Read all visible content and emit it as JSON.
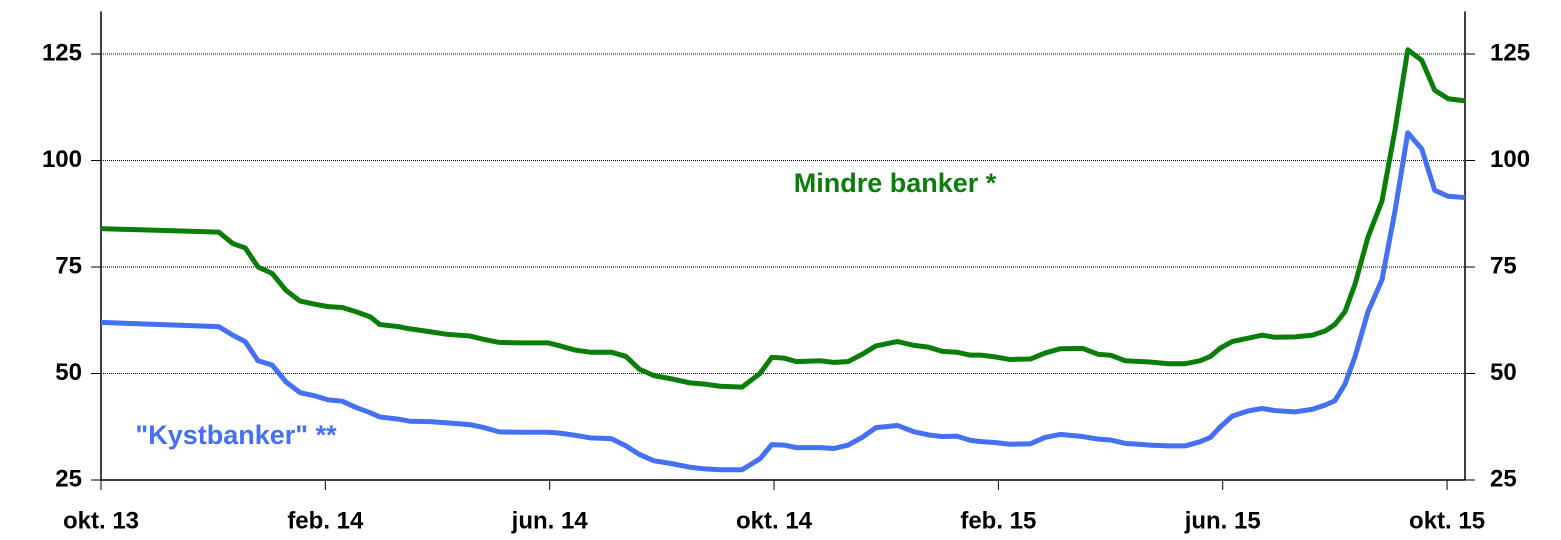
{
  "chart_data": {
    "type": "line",
    "x": [
      0,
      2.1,
      2.35,
      2.57,
      2.8,
      3.05,
      3.3,
      3.55,
      3.8,
      4.05,
      4.3,
      4.55,
      4.8,
      4.97,
      5.3,
      5.5,
      5.87,
      6.17,
      6.58,
      6.83,
      7.1,
      7.47,
      7.97,
      8.18,
      8.45,
      8.72,
      9.1,
      9.36,
      9.6,
      9.86,
      10.15,
      10.5,
      10.77,
      11.04,
      11.43,
      11.75,
      11.96,
      12.18,
      12.4,
      12.82,
      13.07,
      13.32,
      13.57,
      13.82,
      14.2,
      14.5,
      14.75,
      15,
      15.26,
      15.5,
      15.7,
      15.94,
      16.2,
      16.57,
      16.83,
      17.1,
      17.5,
      17.78,
      18,
      18.26,
      18.7,
      19.03,
      19.33,
      19.6,
      19.78,
      19.96,
      20.17,
      20.45,
      20.7,
      20.93,
      21.29,
      21.6,
      21.83,
      22,
      22.18,
      22.36,
      22.59,
      22.84,
      23.07,
      23.3,
      23.55,
      23.78,
      24.02,
      24.32
    ],
    "series": [
      {
        "name": "Mindre banker *",
        "color": "#0a7d0a",
        "values": [
          84,
          83.2,
          80.5,
          79.5,
          75,
          73.5,
          69.5,
          67,
          66.3,
          65.7,
          65.5,
          64.5,
          63.3,
          61.5,
          61,
          60.5,
          59.8,
          59.2,
          58.8,
          58,
          57.3,
          57.2,
          57.2,
          56.5,
          55.5,
          55,
          55,
          54,
          51,
          49.5,
          48.8,
          47.8,
          47.5,
          47,
          46.8,
          50,
          53.8,
          53.6,
          52.8,
          53,
          52.6,
          52.8,
          54.5,
          56.5,
          57.5,
          56.6,
          56.2,
          55.2,
          55,
          54.3,
          54.3,
          53.9,
          53.3,
          53.4,
          54.8,
          55.8,
          55.9,
          54.5,
          54.3,
          53,
          52.7,
          52.3,
          52.3,
          53,
          54,
          56,
          57.5,
          58.3,
          59,
          58.5,
          58.6,
          59,
          60,
          61.5,
          64.5,
          71,
          82,
          90.5,
          107,
          126,
          123.5,
          116.5,
          114.5,
          114
        ]
      },
      {
        "name": "\"Kystbanker\" **",
        "color": "#4470f2",
        "values": [
          62,
          61,
          59,
          57.5,
          53,
          52,
          48,
          45.5,
          44.8,
          43.8,
          43.5,
          42,
          40.8,
          39.8,
          39.3,
          38.8,
          38.7,
          38.4,
          38,
          37.3,
          36.3,
          36.2,
          36.2,
          36,
          35.5,
          34.9,
          34.7,
          33,
          31,
          29.5,
          28.9,
          28,
          27.6,
          27.4,
          27.4,
          30,
          33.3,
          33.2,
          32.6,
          32.6,
          32.4,
          33.2,
          35,
          37.3,
          37.8,
          36.3,
          35.6,
          35.2,
          35.3,
          34.3,
          34,
          33.8,
          33.4,
          33.5,
          35,
          35.7,
          35.2,
          34.6,
          34.4,
          33.6,
          33.2,
          33,
          33,
          34,
          35,
          37.5,
          40,
          41.2,
          41.8,
          41.3,
          41,
          41.6,
          42.6,
          43.6,
          47.5,
          54,
          64.5,
          72,
          88,
          106.5,
          102.7,
          93,
          91.6,
          91.3
        ]
      }
    ],
    "xlim": [
      0,
      24.32
    ],
    "xticks": [
      {
        "value": 0,
        "label": "okt. 13"
      },
      {
        "value": 4,
        "label": "feb. 14"
      },
      {
        "value": 8,
        "label": "jun. 14"
      },
      {
        "value": 12,
        "label": "okt. 14"
      },
      {
        "value": 16,
        "label": "feb. 15"
      },
      {
        "value": 20,
        "label": "jun. 15"
      },
      {
        "value": 24,
        "label": "okt. 15"
      }
    ],
    "ylim": [
      25,
      135
    ],
    "yticks": [
      25,
      50,
      75,
      100,
      125
    ],
    "y2lim": [
      25,
      135
    ],
    "y2ticks": [
      25,
      50,
      75,
      100,
      125
    ],
    "grid": true
  }
}
